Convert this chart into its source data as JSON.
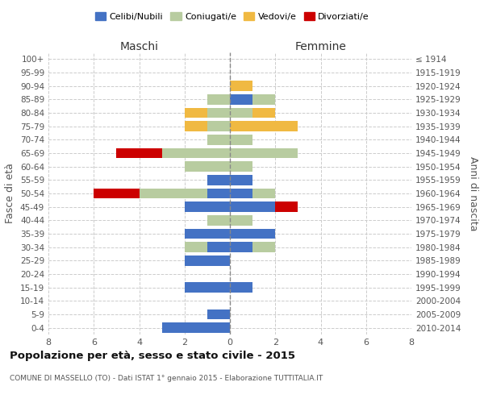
{
  "age_groups": [
    "100+",
    "95-99",
    "90-94",
    "85-89",
    "80-84",
    "75-79",
    "70-74",
    "65-69",
    "60-64",
    "55-59",
    "50-54",
    "45-49",
    "40-44",
    "35-39",
    "30-34",
    "25-29",
    "20-24",
    "15-19",
    "10-14",
    "5-9",
    "0-4"
  ],
  "birth_years": [
    "≤ 1914",
    "1915-1919",
    "1920-1924",
    "1925-1929",
    "1930-1934",
    "1935-1939",
    "1940-1944",
    "1945-1949",
    "1950-1954",
    "1955-1959",
    "1960-1964",
    "1965-1969",
    "1970-1974",
    "1975-1979",
    "1980-1984",
    "1985-1989",
    "1990-1994",
    "1995-1999",
    "2000-2004",
    "2005-2009",
    "2010-2014"
  ],
  "maschi": {
    "celibi": [
      0,
      0,
      0,
      0,
      0,
      0,
      0,
      0,
      0,
      1,
      1,
      2,
      0,
      2,
      1,
      2,
      0,
      2,
      0,
      1,
      3
    ],
    "coniugati": [
      0,
      0,
      0,
      1,
      1,
      1,
      1,
      3,
      2,
      0,
      3,
      0,
      1,
      0,
      1,
      0,
      0,
      0,
      0,
      0,
      0
    ],
    "vedovi": [
      0,
      0,
      0,
      0,
      1,
      1,
      0,
      0,
      0,
      0,
      0,
      0,
      0,
      0,
      0,
      0,
      0,
      0,
      0,
      0,
      0
    ],
    "divorziati": [
      0,
      0,
      0,
      0,
      0,
      0,
      0,
      2,
      0,
      0,
      2,
      0,
      0,
      0,
      0,
      0,
      0,
      0,
      0,
      0,
      0
    ]
  },
  "femmine": {
    "nubili": [
      0,
      0,
      0,
      1,
      0,
      0,
      0,
      0,
      0,
      1,
      1,
      2,
      0,
      2,
      1,
      0,
      0,
      1,
      0,
      0,
      0
    ],
    "coniugate": [
      0,
      0,
      0,
      1,
      1,
      0,
      1,
      3,
      1,
      0,
      1,
      0,
      1,
      0,
      1,
      0,
      0,
      0,
      0,
      0,
      0
    ],
    "vedove": [
      0,
      0,
      1,
      0,
      1,
      3,
      0,
      0,
      0,
      0,
      0,
      0,
      0,
      0,
      0,
      0,
      0,
      0,
      0,
      0,
      0
    ],
    "divorziate": [
      0,
      0,
      0,
      0,
      0,
      0,
      0,
      0,
      0,
      0,
      0,
      1,
      0,
      0,
      0,
      0,
      0,
      0,
      0,
      0,
      0
    ]
  },
  "colors": {
    "celibi": "#4472c4",
    "coniugati": "#b8cca0",
    "vedovi": "#f0b942",
    "divorziati": "#cc0000"
  },
  "title": "Popolazione per età, sesso e stato civile - 2015",
  "subtitle": "COMUNE DI MASSELLO (TO) - Dati ISTAT 1° gennaio 2015 - Elaborazione TUTTITALIA.IT",
  "xlabel_left": "Maschi",
  "xlabel_right": "Femmine",
  "ylabel_left": "Fasce di età",
  "ylabel_right": "Anni di nascita",
  "xlim": 8,
  "background_color": "#ffffff",
  "legend_labels": [
    "Celibi/Nubili",
    "Coniugati/e",
    "Vedovi/e",
    "Divorziati/e"
  ]
}
